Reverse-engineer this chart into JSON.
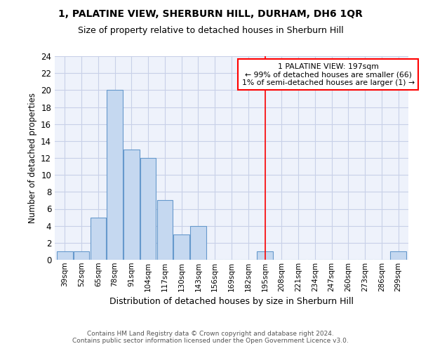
{
  "title": "1, PALATINE VIEW, SHERBURN HILL, DURHAM, DH6 1QR",
  "subtitle": "Size of property relative to detached houses in Sherburn Hill",
  "xlabel": "Distribution of detached houses by size in Sherburn Hill",
  "ylabel": "Number of detached properties",
  "bar_labels": [
    "39sqm",
    "52sqm",
    "65sqm",
    "78sqm",
    "91sqm",
    "104sqm",
    "117sqm",
    "130sqm",
    "143sqm",
    "156sqm",
    "169sqm",
    "182sqm",
    "195sqm",
    "208sqm",
    "221sqm",
    "234sqm",
    "247sqm",
    "260sqm",
    "273sqm",
    "286sqm",
    "299sqm"
  ],
  "bar_values": [
    1,
    1,
    5,
    20,
    13,
    12,
    7,
    3,
    4,
    0,
    0,
    0,
    1,
    0,
    0,
    0,
    0,
    0,
    0,
    0,
    1
  ],
  "bar_color": "#c5d8f0",
  "bar_edge_color": "#6699cc",
  "vline_x": 12,
  "vline_color": "red",
  "annotation_text": "1 PALATINE VIEW: 197sqm\n← 99% of detached houses are smaller (66)\n1% of semi-detached houses are larger (1) →",
  "annotation_box_color": "white",
  "annotation_box_edge_color": "red",
  "ylim": [
    0,
    24
  ],
  "yticks": [
    0,
    2,
    4,
    6,
    8,
    10,
    12,
    14,
    16,
    18,
    20,
    22,
    24
  ],
  "bg_color": "#eef2fb",
  "grid_color": "#c8d0e8",
  "footnote": "Contains HM Land Registry data © Crown copyright and database right 2024.\nContains public sector information licensed under the Open Government Licence v3.0."
}
